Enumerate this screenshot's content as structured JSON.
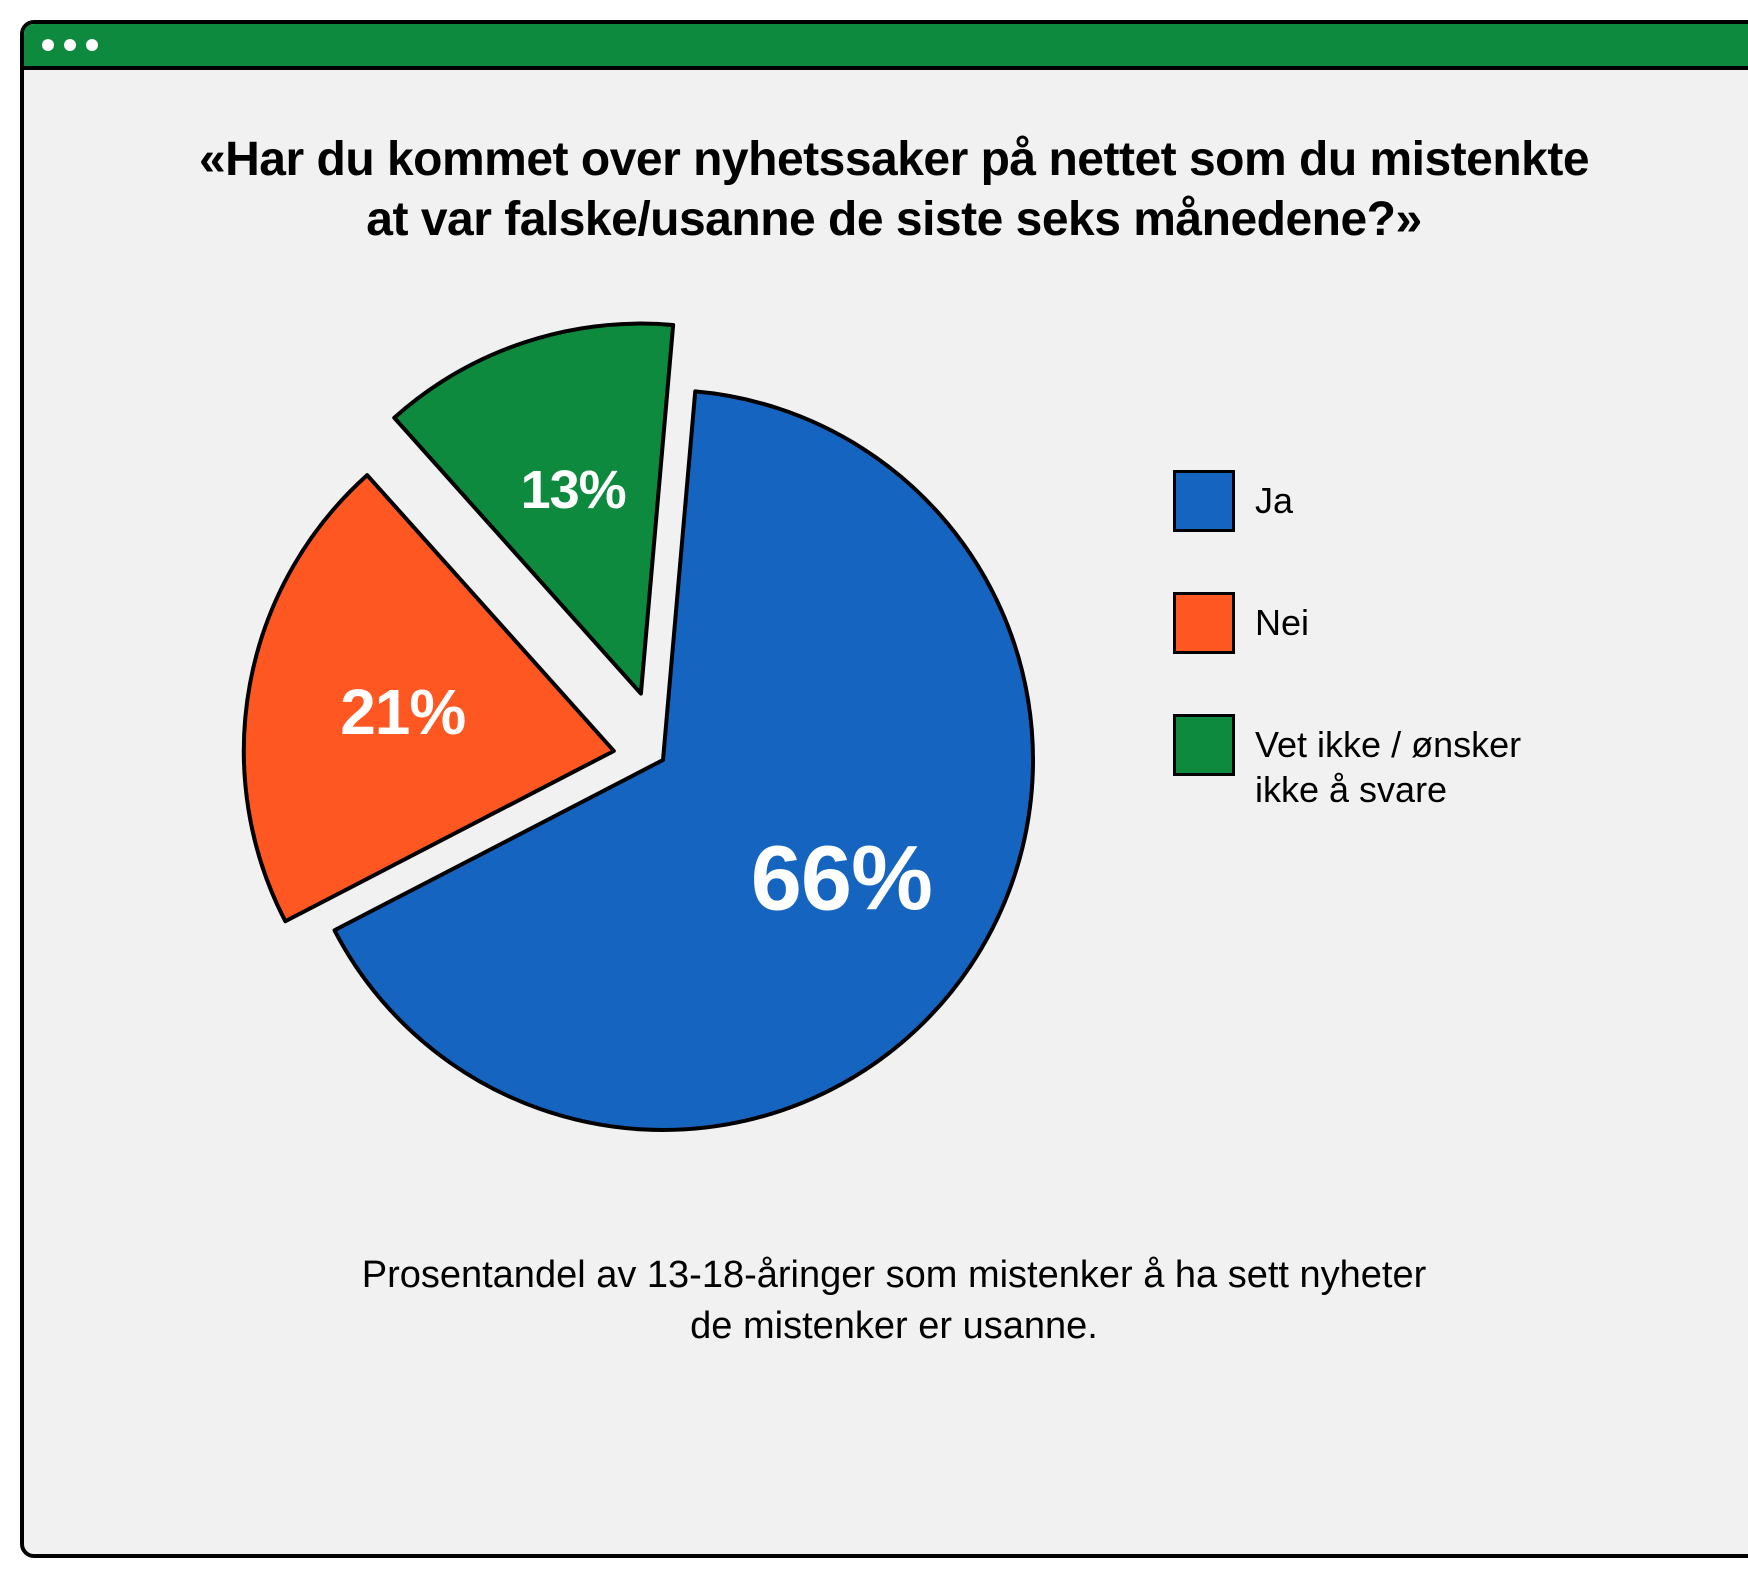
{
  "window": {
    "titlebar_color": "#0d8a3e",
    "border_color": "#000000",
    "background_color": "#f1f1f1",
    "dot_color": "#ffffff"
  },
  "chart": {
    "type": "pie",
    "title": "«Har du kommet over nyhetssaker på nettet som du mistenkte at var falske/usanne de siste seks månedene?»",
    "title_fontsize": 48,
    "title_color": "#000000",
    "caption": "Prosentandel av 13-18-åringer som mistenker å ha sett nyheter de mistenker er usanne.",
    "caption_fontsize": 38,
    "slice_stroke_color": "#000000",
    "slice_stroke_width": 4,
    "slice_label_color": "#ffffff",
    "background_color": "#f1f1f1",
    "start_angle_deg": -85,
    "base_radius": 370,
    "slices": [
      {
        "label": "Ja",
        "value": 66,
        "display": "66%",
        "color": "#1565c0",
        "explode": 0,
        "label_fontsize": 92
      },
      {
        "label": "Nei",
        "value": 21,
        "display": "21%",
        "color": "#ff5722",
        "explode": 50,
        "label_fontsize": 64
      },
      {
        "label": "Vet ikke / ønsker ikke å svare",
        "value": 13,
        "display": "13%",
        "color": "#0d8a3e",
        "explode": 70,
        "label_fontsize": 54
      }
    ],
    "legend": {
      "swatch_size": 62,
      "swatch_border_color": "#000000",
      "label_fontsize": 36
    }
  }
}
